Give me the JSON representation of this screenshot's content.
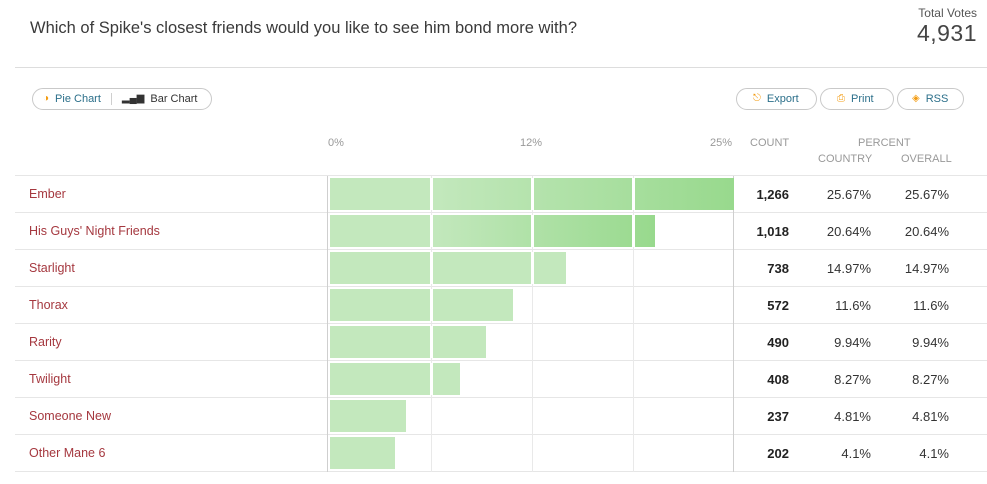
{
  "poll": {
    "question": "Which of Spike's closest friends would you like to see him bond more with?",
    "total_votes_label": "Total Votes",
    "total_votes": "4,931"
  },
  "toolbar": {
    "pie_chart_label": "Pie Chart",
    "bar_chart_label": "Bar Chart",
    "export_label": "Export",
    "print_label": "Print",
    "rss_label": "RSS"
  },
  "columns": {
    "count": "COUNT",
    "percent": "PERCENT",
    "country": "COUNTRY",
    "overall": "OVERALL"
  },
  "colors": {
    "bar_light": "#c3e8bd",
    "bar_dark": "#98d98d",
    "name_text": "#a5383f",
    "link_blue": "#2b6f8a",
    "accent_orange": "#f39c12"
  },
  "chart_data": {
    "type": "bar",
    "orientation": "horizontal",
    "categories": [
      "Ember",
      "His Guys' Night Friends",
      "Starlight",
      "Thorax",
      "Rarity",
      "Twilight",
      "Someone New",
      "Other Mane 6"
    ],
    "counts": [
      "1,266",
      "1,018",
      "738",
      "572",
      "490",
      "408",
      "237",
      "202"
    ],
    "country_pct": [
      "25.67%",
      "20.64%",
      "14.97%",
      "11.6%",
      "9.94%",
      "8.27%",
      "4.81%",
      "4.1%"
    ],
    "overall_pct": [
      "25.67%",
      "20.64%",
      "14.97%",
      "11.6%",
      "9.94%",
      "8.27%",
      "4.81%",
      "4.1%"
    ],
    "values": [
      25.67,
      20.64,
      14.97,
      11.6,
      9.94,
      8.27,
      4.81,
      4.1
    ],
    "xlim": [
      0,
      25.67
    ],
    "xticks": [
      "0%",
      "12%",
      "25%"
    ],
    "grid": true
  }
}
